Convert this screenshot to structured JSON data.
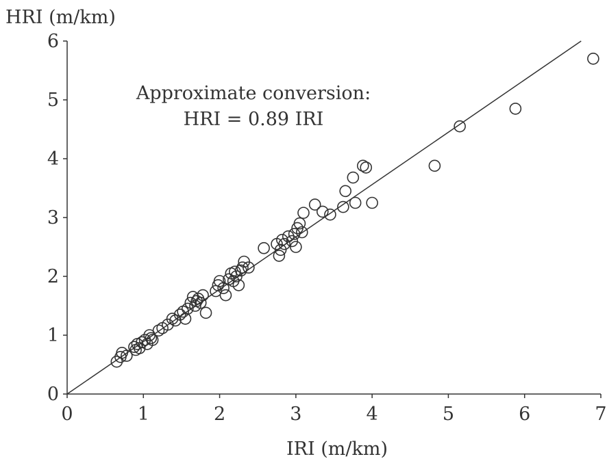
{
  "chart_data": {
    "type": "scatter",
    "ylabel": "HRI (m/km)",
    "xlabel": "IRI (m/km)",
    "xlim": [
      0,
      7
    ],
    "ylim": [
      0,
      6
    ],
    "x_ticks": [
      "0",
      "1",
      "2",
      "3",
      "4",
      "5",
      "6",
      "7"
    ],
    "y_ticks": [
      "0",
      "1",
      "2",
      "3",
      "4",
      "5",
      "6"
    ],
    "grid": false,
    "annotation": [
      "Approximate conversion:",
      "HRI = 0.89 IRI"
    ],
    "fit_line": {
      "slope": 0.89,
      "intercept": 0
    },
    "points": [
      [
        0.65,
        0.55
      ],
      [
        0.7,
        0.63
      ],
      [
        0.72,
        0.7
      ],
      [
        0.78,
        0.65
      ],
      [
        0.88,
        0.8
      ],
      [
        0.9,
        0.75
      ],
      [
        0.92,
        0.85
      ],
      [
        0.95,
        0.78
      ],
      [
        0.98,
        0.88
      ],
      [
        1.02,
        0.92
      ],
      [
        1.05,
        0.85
      ],
      [
        1.08,
        1.0
      ],
      [
        1.1,
        0.95
      ],
      [
        1.12,
        0.92
      ],
      [
        1.2,
        1.08
      ],
      [
        1.25,
        1.12
      ],
      [
        1.32,
        1.18
      ],
      [
        1.38,
        1.28
      ],
      [
        1.42,
        1.25
      ],
      [
        1.48,
        1.35
      ],
      [
        1.52,
        1.4
      ],
      [
        1.55,
        1.28
      ],
      [
        1.58,
        1.45
      ],
      [
        1.62,
        1.55
      ],
      [
        1.65,
        1.65
      ],
      [
        1.68,
        1.5
      ],
      [
        1.7,
        1.58
      ],
      [
        1.72,
        1.62
      ],
      [
        1.75,
        1.55
      ],
      [
        1.78,
        1.68
      ],
      [
        1.82,
        1.38
      ],
      [
        1.95,
        1.75
      ],
      [
        1.98,
        1.85
      ],
      [
        2.0,
        1.92
      ],
      [
        2.05,
        1.8
      ],
      [
        2.08,
        1.68
      ],
      [
        2.12,
        1.95
      ],
      [
        2.15,
        2.05
      ],
      [
        2.18,
        1.92
      ],
      [
        2.2,
        2.08
      ],
      [
        2.22,
        2.0
      ],
      [
        2.25,
        1.85
      ],
      [
        2.28,
        2.1
      ],
      [
        2.3,
        2.15
      ],
      [
        2.32,
        2.25
      ],
      [
        2.38,
        2.15
      ],
      [
        2.58,
        2.48
      ],
      [
        2.75,
        2.55
      ],
      [
        2.78,
        2.35
      ],
      [
        2.8,
        2.45
      ],
      [
        2.82,
        2.62
      ],
      [
        2.85,
        2.55
      ],
      [
        2.9,
        2.68
      ],
      [
        2.95,
        2.6
      ],
      [
        2.98,
        2.72
      ],
      [
        3.0,
        2.5
      ],
      [
        3.02,
        2.82
      ],
      [
        3.05,
        2.9
      ],
      [
        3.08,
        2.75
      ],
      [
        3.1,
        3.08
      ],
      [
        3.25,
        3.22
      ],
      [
        3.35,
        3.1
      ],
      [
        3.45,
        3.05
      ],
      [
        3.62,
        3.18
      ],
      [
        3.65,
        3.45
      ],
      [
        3.75,
        3.68
      ],
      [
        3.78,
        3.25
      ],
      [
        3.88,
        3.88
      ],
      [
        3.92,
        3.85
      ],
      [
        4.0,
        3.25
      ],
      [
        4.82,
        3.88
      ],
      [
        5.15,
        4.55
      ],
      [
        5.88,
        4.85
      ],
      [
        6.9,
        5.7
      ]
    ]
  }
}
